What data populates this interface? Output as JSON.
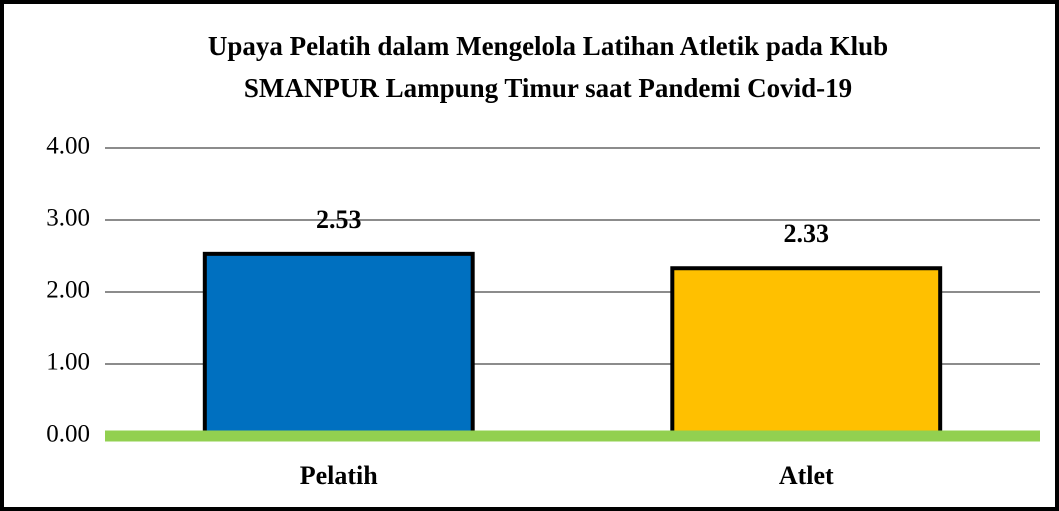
{
  "chart_data": {
    "type": "bar",
    "title": [
      "Upaya Pelatih dalam Mengelola Latihan Atletik pada Klub",
      "SMANPUR Lampung Timur saat Pandemi Covid-19"
    ],
    "categories": [
      "Pelatih",
      "Atlet"
    ],
    "values": [
      2.53,
      2.33
    ],
    "colors": [
      "#0070c0",
      "#ffc000"
    ],
    "ylim": [
      0,
      4
    ],
    "yticks": [
      {
        "value": 0,
        "label": "0.00"
      },
      {
        "value": 1,
        "label": "1.00"
      },
      {
        "value": 2,
        "label": "2.00"
      },
      {
        "value": 3,
        "label": "3.00"
      },
      {
        "value": 4,
        "label": "4.00"
      }
    ],
    "grid": true,
    "baseline_color": "#92d050"
  }
}
